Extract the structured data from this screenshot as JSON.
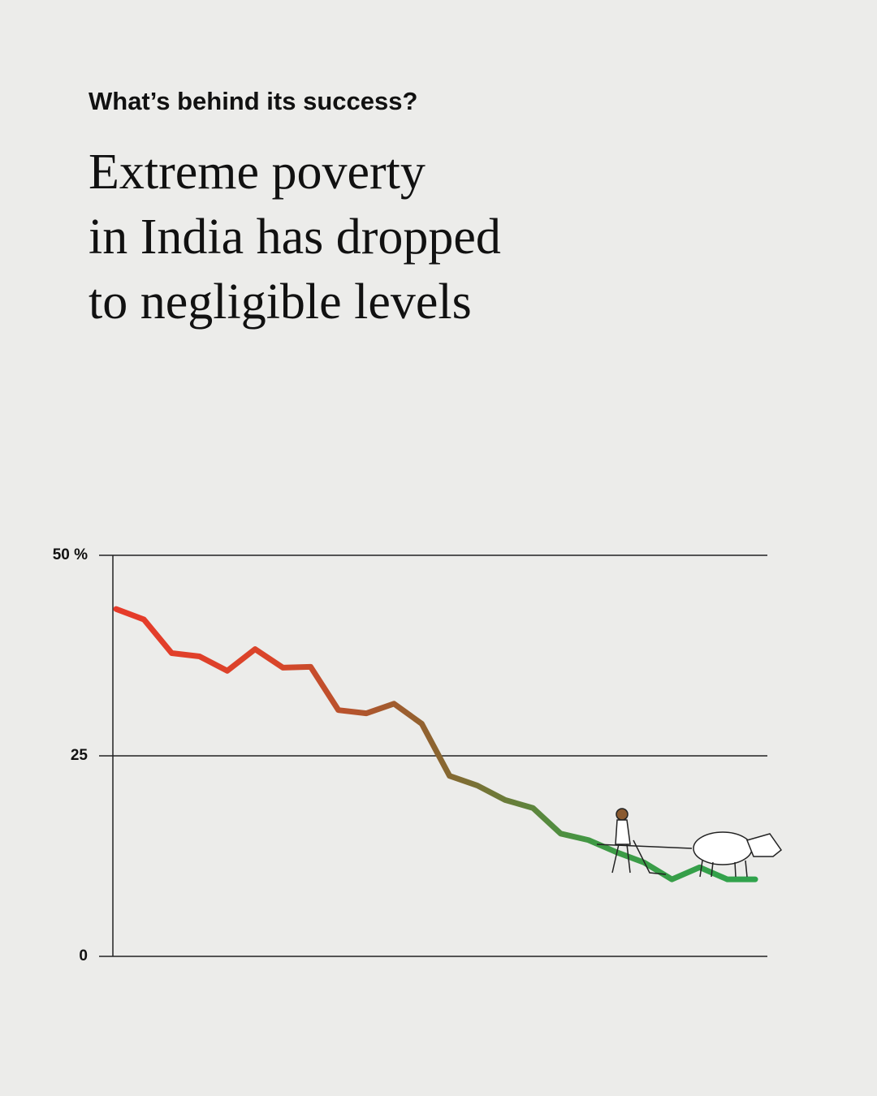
{
  "chart_data": {
    "type": "line",
    "subtitle": "What’s behind its success?",
    "title": [
      "Extreme poverty",
      "in India has dropped",
      "to negligible levels"
    ],
    "categories": [
      null,
      null,
      null,
      null,
      null,
      null,
      null,
      null,
      null,
      null,
      null,
      null,
      null,
      null,
      null,
      null,
      null,
      null,
      null,
      null,
      null,
      null,
      null,
      null
    ],
    "values": [
      43.3,
      42.0,
      37.8,
      37.4,
      35.6,
      38.3,
      36.0,
      36.1,
      30.7,
      30.3,
      31.5,
      29.0,
      22.5,
      21.3,
      19.5,
      18.5,
      15.3,
      14.5,
      13.0,
      11.7,
      9.6,
      11.1,
      9.6,
      9.6
    ],
    "gradient": [
      "#e63b2a",
      "#d9452a",
      "#8c6430",
      "#3f9a45",
      "#2fa34c"
    ],
    "ylim": [
      0,
      50
    ],
    "yticks": [
      0,
      25,
      {
        "value": 50,
        "label": "50 %"
      }
    ],
    "grid": true
  }
}
